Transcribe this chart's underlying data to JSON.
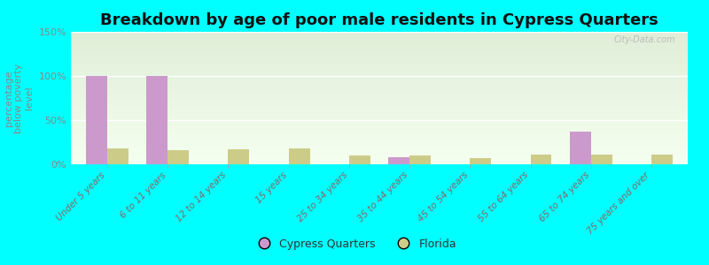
{
  "title": "Breakdown by age of poor male residents in Cypress Quarters",
  "ylabel": "percentage\nbelow poverty\nlevel",
  "categories": [
    "Under 5 years",
    "6 to 11 years",
    "12 to 14 years",
    "15 years",
    "25 to 34 years",
    "35 to 44 years",
    "45 to 54 years",
    "55 to 64 years",
    "65 to 74 years",
    "75 years and over"
  ],
  "cypress_values": [
    100,
    100,
    0,
    0,
    0,
    8,
    0,
    0,
    37,
    0
  ],
  "florida_values": [
    18,
    16,
    17,
    18,
    10,
    10,
    7,
    11,
    11,
    11
  ],
  "cypress_color": "#cc99cc",
  "florida_color": "#cccc88",
  "bg_color": "#00ffff",
  "grad_top": "#e0eed8",
  "grad_bottom": "#f5fff0",
  "ylim": [
    0,
    150
  ],
  "yticks": [
    0,
    50,
    100,
    150
  ],
  "ytick_labels": [
    "0%",
    "50%",
    "100%",
    "150%"
  ],
  "title_fontsize": 13,
  "ylabel_fontsize": 8,
  "bar_width": 0.35,
  "legend_labels": [
    "Cypress Quarters",
    "Florida"
  ],
  "tick_label_color": "#886666",
  "ytick_color": "#888888",
  "watermark": "City-Data.com"
}
